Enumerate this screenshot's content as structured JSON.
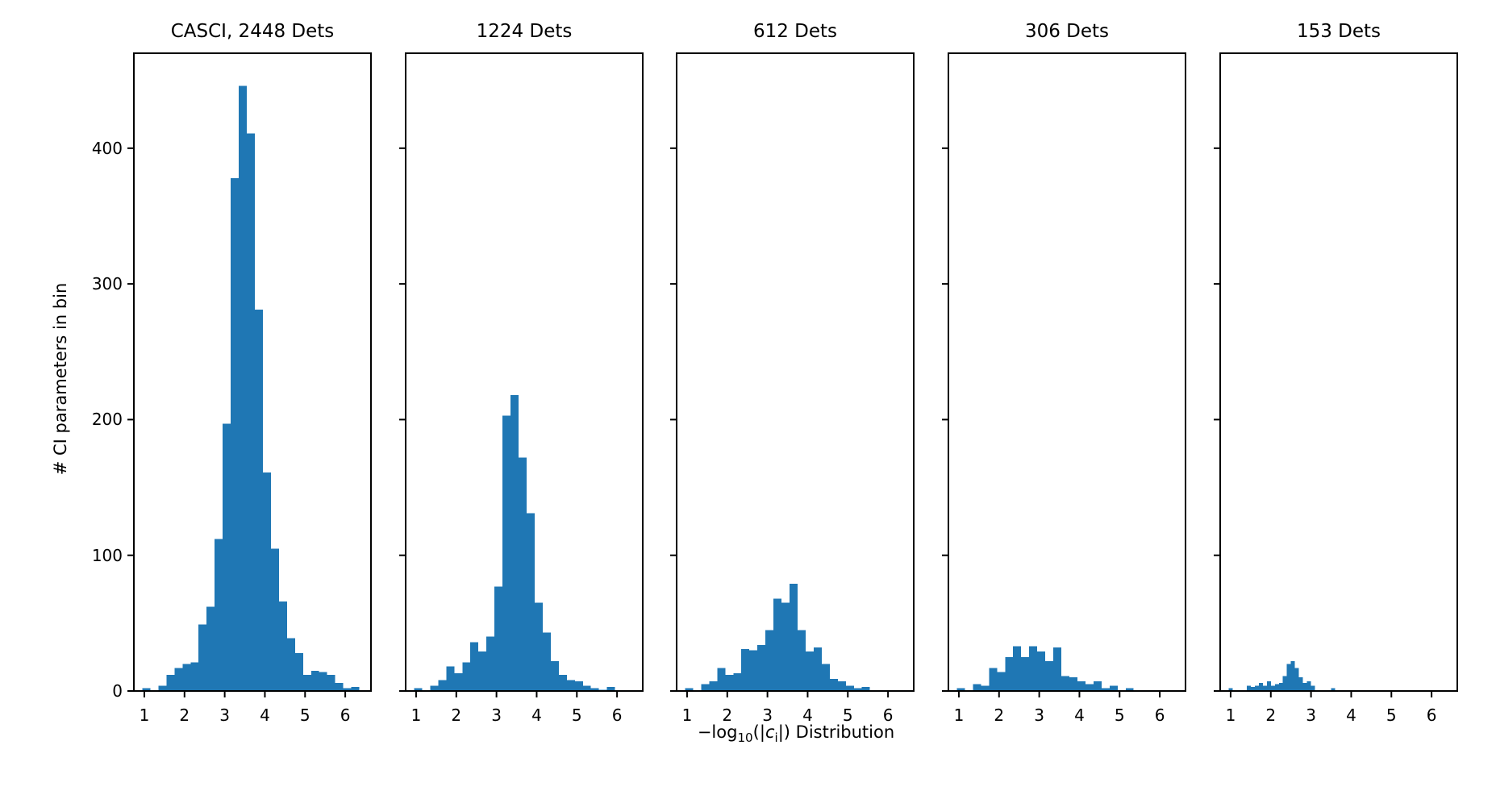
{
  "figure": {
    "ylabel": "# CI parameters in bin",
    "xlabel_parts": {
      "neg_log": "−log",
      "log_base": "10",
      "open_group": "(|",
      "variable": "c",
      "variable_subscript": "i",
      "close_group": "|) Distribution"
    }
  },
  "axes": {
    "xlim": [
      0.72,
      6.66
    ],
    "ylim": [
      0,
      470
    ],
    "xticks": [
      1,
      2,
      3,
      4,
      5,
      6
    ],
    "yticks": [
      0,
      100,
      200,
      300,
      400
    ],
    "bar_color": "#1f77b4",
    "spine_color": "#000000",
    "grid": false,
    "legend_position": "none"
  },
  "chart_data": [
    {
      "type": "bar",
      "title": "CASCI, 2448 Dets",
      "bin_width": 0.2,
      "bars": [
        [
          1.05,
          2
        ],
        [
          1.45,
          4
        ],
        [
          1.65,
          12
        ],
        [
          1.85,
          17
        ],
        [
          2.05,
          20
        ],
        [
          2.25,
          21
        ],
        [
          2.45,
          49
        ],
        [
          2.65,
          62
        ],
        [
          2.85,
          112
        ],
        [
          3.05,
          197
        ],
        [
          3.25,
          378
        ],
        [
          3.45,
          446
        ],
        [
          3.65,
          411
        ],
        [
          3.85,
          281
        ],
        [
          4.05,
          161
        ],
        [
          4.25,
          105
        ],
        [
          4.45,
          66
        ],
        [
          4.65,
          39
        ],
        [
          4.85,
          28
        ],
        [
          5.05,
          12
        ],
        [
          5.25,
          15
        ],
        [
          5.45,
          14
        ],
        [
          5.65,
          12
        ],
        [
          5.85,
          6
        ],
        [
          6.05,
          2
        ],
        [
          6.25,
          3
        ]
      ]
    },
    {
      "type": "bar",
      "title": "1224 Dets",
      "bin_width": 0.2,
      "bars": [
        [
          1.05,
          2
        ],
        [
          1.45,
          4
        ],
        [
          1.65,
          8
        ],
        [
          1.85,
          18
        ],
        [
          2.05,
          13
        ],
        [
          2.25,
          21
        ],
        [
          2.45,
          36
        ],
        [
          2.65,
          29
        ],
        [
          2.85,
          40
        ],
        [
          3.05,
          77
        ],
        [
          3.25,
          203
        ],
        [
          3.45,
          218
        ],
        [
          3.65,
          172
        ],
        [
          3.85,
          131
        ],
        [
          4.05,
          65
        ],
        [
          4.25,
          43
        ],
        [
          4.45,
          22
        ],
        [
          4.65,
          12
        ],
        [
          4.85,
          8
        ],
        [
          5.05,
          7
        ],
        [
          5.25,
          4
        ],
        [
          5.45,
          2
        ],
        [
          5.65,
          1
        ],
        [
          5.85,
          3
        ]
      ]
    },
    {
      "type": "bar",
      "title": "612 Dets",
      "bin_width": 0.2,
      "bars": [
        [
          1.05,
          2
        ],
        [
          1.45,
          5
        ],
        [
          1.65,
          7
        ],
        [
          1.85,
          17
        ],
        [
          2.05,
          12
        ],
        [
          2.25,
          13
        ],
        [
          2.45,
          31
        ],
        [
          2.65,
          30
        ],
        [
          2.85,
          34
        ],
        [
          3.05,
          45
        ],
        [
          3.25,
          68
        ],
        [
          3.45,
          65
        ],
        [
          3.65,
          79
        ],
        [
          3.85,
          45
        ],
        [
          4.05,
          29
        ],
        [
          4.25,
          32
        ],
        [
          4.45,
          20
        ],
        [
          4.65,
          9
        ],
        [
          4.85,
          7
        ],
        [
          5.05,
          4
        ],
        [
          5.25,
          2
        ],
        [
          5.45,
          3
        ]
      ]
    },
    {
      "type": "bar",
      "title": "306 Dets",
      "bin_width": 0.2,
      "bars": [
        [
          1.05,
          2
        ],
        [
          1.45,
          5
        ],
        [
          1.65,
          4
        ],
        [
          1.85,
          17
        ],
        [
          2.05,
          14
        ],
        [
          2.25,
          25
        ],
        [
          2.45,
          33
        ],
        [
          2.65,
          25
        ],
        [
          2.85,
          33
        ],
        [
          3.05,
          29
        ],
        [
          3.25,
          22
        ],
        [
          3.45,
          32
        ],
        [
          3.65,
          11
        ],
        [
          3.85,
          10
        ],
        [
          4.05,
          7
        ],
        [
          4.25,
          5
        ],
        [
          4.45,
          7
        ],
        [
          4.65,
          2
        ],
        [
          4.85,
          4
        ],
        [
          5.25,
          2
        ]
      ]
    },
    {
      "type": "bar",
      "title": "153 Dets",
      "bin_width": 0.1,
      "bars": [
        [
          1.0,
          2
        ],
        [
          1.45,
          4
        ],
        [
          1.55,
          3
        ],
        [
          1.65,
          4
        ],
        [
          1.75,
          6
        ],
        [
          1.85,
          4
        ],
        [
          1.95,
          7
        ],
        [
          2.05,
          4
        ],
        [
          2.15,
          5
        ],
        [
          2.25,
          6
        ],
        [
          2.35,
          11
        ],
        [
          2.45,
          20
        ],
        [
          2.55,
          22
        ],
        [
          2.65,
          17
        ],
        [
          2.75,
          10
        ],
        [
          2.85,
          6
        ],
        [
          2.95,
          7
        ],
        [
          3.05,
          4
        ],
        [
          3.55,
          2
        ]
      ]
    }
  ]
}
